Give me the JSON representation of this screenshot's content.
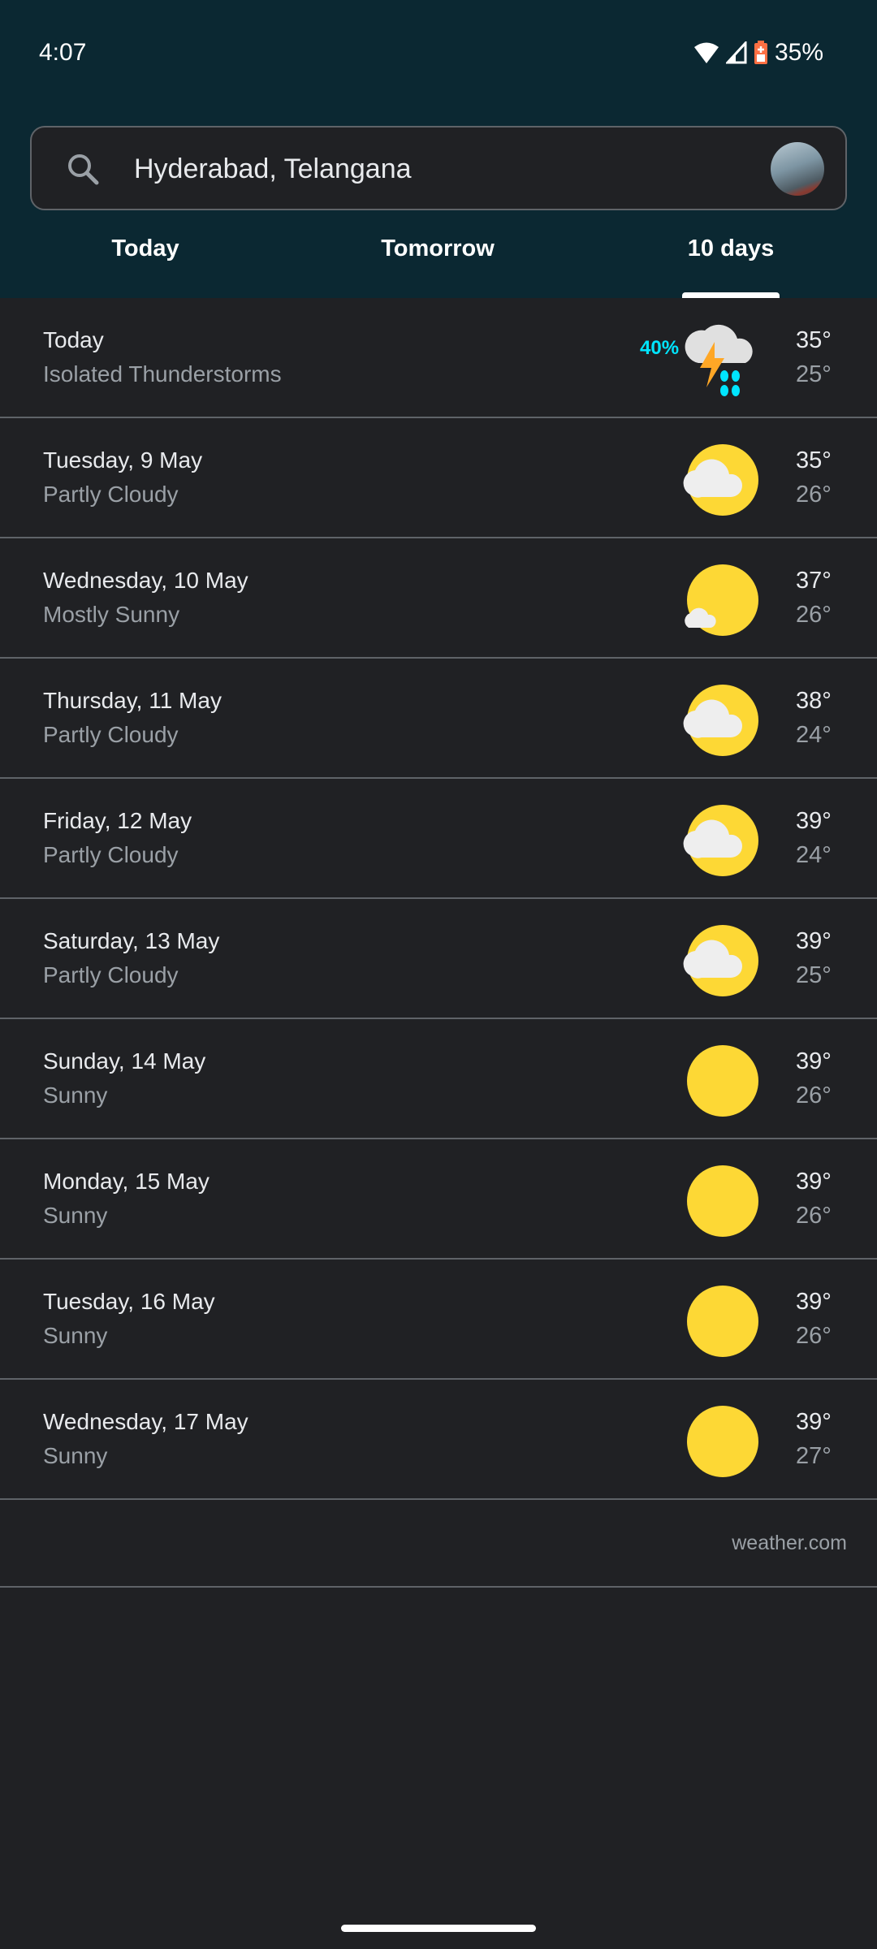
{
  "status_bar": {
    "time": "4:07",
    "battery": "35%",
    "icons": [
      "wifi-icon",
      "signal-icon",
      "battery-saver-icon"
    ],
    "battery_color": "#ff7043"
  },
  "search": {
    "value": "Hyderabad, Telangana",
    "icon": "search-icon"
  },
  "tabs": [
    {
      "label": "Today",
      "selected": false
    },
    {
      "label": "Tomorrow",
      "selected": false
    },
    {
      "label": "10 days",
      "selected": true
    }
  ],
  "colors": {
    "header_bg": "#0b2832",
    "page_bg": "#202124",
    "precip": "#00e5ff",
    "sun": "#fdd835"
  },
  "days": [
    {
      "day": "Today",
      "condition": "Isolated Thunderstorms",
      "precip": "40%",
      "icon": "thunderstorm",
      "high": "35°",
      "low": "25°"
    },
    {
      "day": "Tuesday, 9 May",
      "condition": "Partly Cloudy",
      "icon": "partly-cloudy",
      "high": "35°",
      "low": "26°"
    },
    {
      "day": "Wednesday, 10 May",
      "condition": "Mostly Sunny",
      "icon": "mostly-sunny",
      "high": "37°",
      "low": "26°"
    },
    {
      "day": "Thursday, 11 May",
      "condition": "Partly Cloudy",
      "icon": "partly-cloudy",
      "high": "38°",
      "low": "24°"
    },
    {
      "day": "Friday, 12 May",
      "condition": "Partly Cloudy",
      "icon": "partly-cloudy",
      "high": "39°",
      "low": "24°"
    },
    {
      "day": "Saturday, 13 May",
      "condition": "Partly Cloudy",
      "icon": "partly-cloudy",
      "high": "39°",
      "low": "25°"
    },
    {
      "day": "Sunday, 14 May",
      "condition": "Sunny",
      "icon": "sunny",
      "high": "39°",
      "low": "26°"
    },
    {
      "day": "Monday, 15 May",
      "condition": "Sunny",
      "icon": "sunny",
      "high": "39°",
      "low": "26°"
    },
    {
      "day": "Tuesday, 16 May",
      "condition": "Sunny",
      "icon": "sunny",
      "high": "39°",
      "low": "26°"
    },
    {
      "day": "Wednesday, 17 May",
      "condition": "Sunny",
      "icon": "sunny",
      "high": "39°",
      "low": "27°"
    }
  ],
  "source": "weather.com"
}
